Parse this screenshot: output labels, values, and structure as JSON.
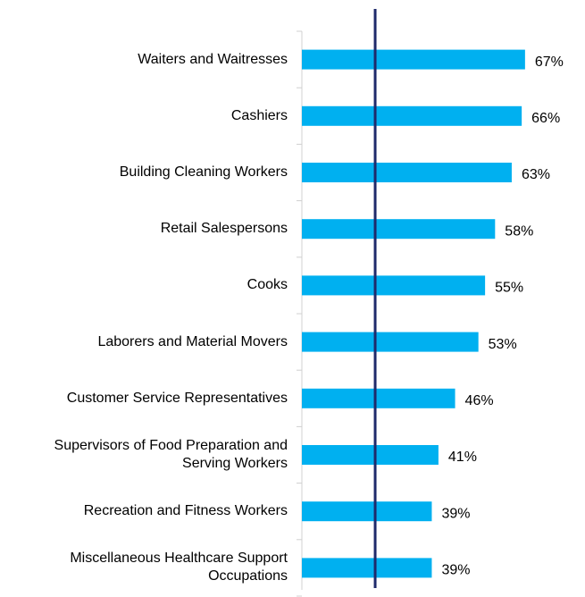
{
  "chart_data": {
    "type": "hbar",
    "categories": [
      "Waiters and Waitresses",
      "Cashiers",
      "Building Cleaning Workers",
      "Retail Salespersons",
      "Cooks",
      "Laborers and Material Movers",
      "Customer Service Representatives",
      "Supervisors of Food Preparation and Serving Workers",
      "Recreation and Fitness Workers",
      "Miscellaneous Healthcare Support Occupations"
    ],
    "values": [
      67,
      66,
      63,
      58,
      55,
      53,
      46,
      41,
      39,
      39
    ],
    "value_labels": [
      "67%",
      "66%",
      "63%",
      "58%",
      "55%",
      "53%",
      "46%",
      "41%",
      "39%",
      "39%"
    ],
    "color": "#00b0f0",
    "xlim": [
      0,
      85
    ],
    "reference_value": 22,
    "reference_color": "#1f2a6b"
  }
}
